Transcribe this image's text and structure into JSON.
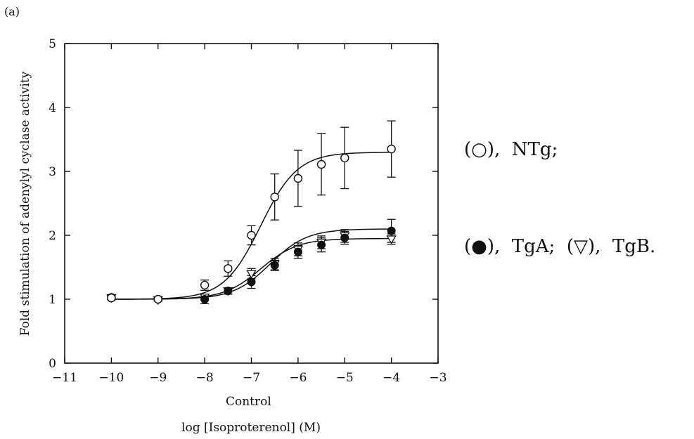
{
  "panel_label": "(a)",
  "legend": {
    "line1": {
      "sym1": "(○),",
      "lab1": "NTg;"
    },
    "line2": {
      "sym1": "(●),",
      "lab1": "TgA;",
      "sym2": "(▽),",
      "lab2": "TgB."
    }
  },
  "chart_data": {
    "type": "line",
    "xlabel": "log [Isoproterenol] (M)",
    "ylabel": "Fold stimulation of adenylyl cyclase activity",
    "xlim": [
      -11,
      -3
    ],
    "ylim": [
      0,
      5
    ],
    "x_ticks": [
      -11,
      -10,
      -9,
      -8,
      -7,
      -6,
      -5,
      -4,
      -3
    ],
    "x_tick_labels": [
      "−11",
      "−10",
      "−9",
      "−8",
      "−7",
      "−6",
      "−5",
      "−4",
      "−3"
    ],
    "x_extra_label": {
      "x": -10,
      "text": "Control"
    },
    "y_ticks": [
      0,
      1,
      2,
      3,
      4,
      5
    ],
    "y_tick_labels": [
      "0",
      "1",
      "2",
      "3",
      "4",
      "5"
    ],
    "grid": false,
    "series": [
      {
        "name": "NTg",
        "marker": "open-circle",
        "x": [
          -10,
          -9,
          -8,
          -7.5,
          -7,
          -6.5,
          -6,
          -5.5,
          -5,
          -4
        ],
        "y": [
          1.02,
          1.0,
          1.22,
          1.48,
          2.0,
          2.6,
          2.89,
          3.11,
          3.21,
          3.35
        ],
        "err": [
          0.03,
          0.02,
          0.08,
          0.12,
          0.15,
          0.36,
          0.44,
          0.48,
          0.48,
          0.44
        ],
        "fit_ec50": -6.8,
        "fit_max": 3.3
      },
      {
        "name": "TgA",
        "marker": "filled-circle",
        "x": [
          -10,
          -9,
          -8,
          -7.5,
          -7,
          -6.5,
          -6,
          -5.5,
          -5,
          -4
        ],
        "y": [
          1.03,
          1.0,
          1.0,
          1.13,
          1.27,
          1.53,
          1.74,
          1.85,
          1.96,
          2.07
        ],
        "err": [
          0.03,
          0.02,
          0.07,
          0.05,
          0.1,
          0.08,
          0.1,
          0.11,
          0.1,
          0.18
        ],
        "fit_ec50": -6.6,
        "fit_max": 2.1
      },
      {
        "name": "TgB",
        "marker": "open-triangle",
        "x": [
          -10,
          -9,
          -8,
          -7.5,
          -7,
          -6.5,
          -6,
          -5.5,
          -5,
          -4
        ],
        "y": [
          1.02,
          0.99,
          1.03,
          1.13,
          1.4,
          1.55,
          1.78,
          1.89,
          1.99,
          1.94
        ],
        "err": [
          0.03,
          0.02,
          0.05,
          0.05,
          0.08,
          0.09,
          0.1,
          0.1,
          0.1,
          0.08
        ],
        "fit_ec50": -6.8,
        "fit_max": 1.95
      }
    ]
  }
}
